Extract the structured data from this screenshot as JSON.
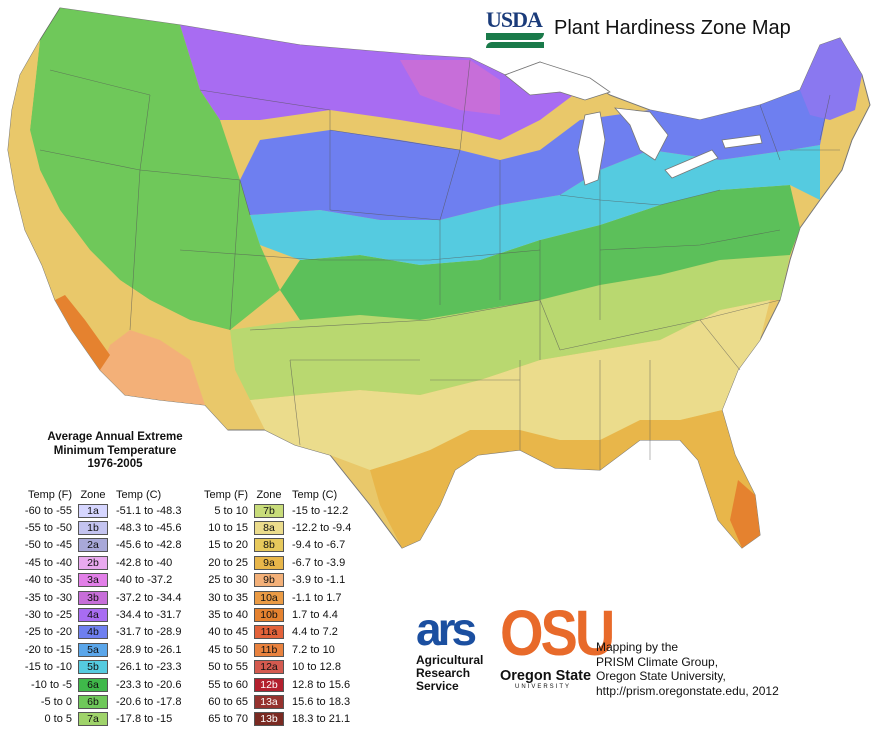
{
  "header": {
    "agency": "USDA",
    "title": "Plant Hardiness Zone Map"
  },
  "legend": {
    "heading": [
      "Average Annual Extreme",
      "Minimum Temperature",
      "1976-2005"
    ],
    "col_headers": {
      "temp_f": "Temp (F)",
      "zone": "Zone",
      "temp_c": "Temp (C)"
    },
    "zones": [
      {
        "f": "-60 to -55",
        "zone": "1a",
        "c": "-51.1 to -48.3",
        "color": "#d6d6ff"
      },
      {
        "f": "-55 to -50",
        "zone": "1b",
        "c": "-48.3 to -45.6",
        "color": "#c4c4f0"
      },
      {
        "f": "-50 to -45",
        "zone": "2a",
        "c": "-45.6 to -42.8",
        "color": "#a8a8d8"
      },
      {
        "f": "-45 to -40",
        "zone": "2b",
        "c": "-42.8 to -40",
        "color": "#e9a9ef"
      },
      {
        "f": "-40 to -35",
        "zone": "3a",
        "c": "-40 to -37.2",
        "color": "#e27fe8"
      },
      {
        "f": "-35 to -30",
        "zone": "3b",
        "c": "-37.2 to -34.4",
        "color": "#c76ed9"
      },
      {
        "f": "-30 to -25",
        "zone": "4a",
        "c": "-34.4 to -31.7",
        "color": "#a86cf2"
      },
      {
        "f": "-25 to -20",
        "zone": "4b",
        "c": "-31.7 to -28.9",
        "color": "#6e7ff0"
      },
      {
        "f": "-20 to -15",
        "zone": "5a",
        "c": "-28.9 to -26.1",
        "color": "#5aa6ea"
      },
      {
        "f": "-15 to -10",
        "zone": "5b",
        "c": "-26.1 to -23.3",
        "color": "#55cbe0"
      },
      {
        "f": "-10 to -5",
        "zone": "6a",
        "c": "-23.3 to -20.6",
        "color": "#3fb94a"
      },
      {
        "f": "-5 to 0",
        "zone": "6b",
        "c": "-20.6 to -17.8",
        "color": "#6fc85a"
      },
      {
        "f": "0 to 5",
        "zone": "7a",
        "c": "-17.8 to -15",
        "color": "#9fd36a"
      },
      {
        "f": "5 to 10",
        "zone": "7b",
        "c": "-15 to -12.2",
        "color": "#c8dc7a"
      },
      {
        "f": "10 to 15",
        "zone": "8a",
        "c": "-12.2 to -9.4",
        "color": "#ebdc8c"
      },
      {
        "f": "15 to 20",
        "zone": "8b",
        "c": "-9.4 to -6.7",
        "color": "#e7c95c"
      },
      {
        "f": "20 to 25",
        "zone": "9a",
        "c": "-6.7 to -3.9",
        "color": "#e8b64a"
      },
      {
        "f": "25 to 30",
        "zone": "9b",
        "c": "-3.9 to -1.1",
        "color": "#f3b078"
      },
      {
        "f": "30 to 35",
        "zone": "10a",
        "c": "-1.1 to 1.7",
        "color": "#eb9b44"
      },
      {
        "f": "35 to 40",
        "zone": "10b",
        "c": "1.7 to 4.4",
        "color": "#e5822f"
      },
      {
        "f": "40 to 45",
        "zone": "11a",
        "c": "4.4 to 7.2",
        "color": "#e3623a"
      },
      {
        "f": "45 to 50",
        "zone": "11b",
        "c": "7.2 to 10",
        "color": "#e9823e"
      },
      {
        "f": "50 to 55",
        "zone": "12a",
        "c": "10 to 12.8",
        "color": "#d45a4f"
      },
      {
        "f": "55 to 60",
        "zone": "12b",
        "c": "12.8 to 15.6",
        "color": "#b3202e"
      },
      {
        "f": "60 to 65",
        "zone": "13a",
        "c": "15.6 to 18.3",
        "color": "#96322e"
      },
      {
        "f": "65 to 70",
        "zone": "13b",
        "c": "18.3 to 21.1",
        "color": "#7a2a22"
      }
    ]
  },
  "logos": {
    "ars_mark": "ars",
    "ars_lines": [
      "Agricultural",
      "Research",
      "Service"
    ],
    "osu_mark": "OSU",
    "osu_name": "Oregon State",
    "osu_univ": "UNIVERSITY"
  },
  "credits": [
    "Mapping by the",
    "PRISM Climate Group,",
    "Oregon State University,",
    "http://prism.oregonstate.edu, 2012"
  ]
}
